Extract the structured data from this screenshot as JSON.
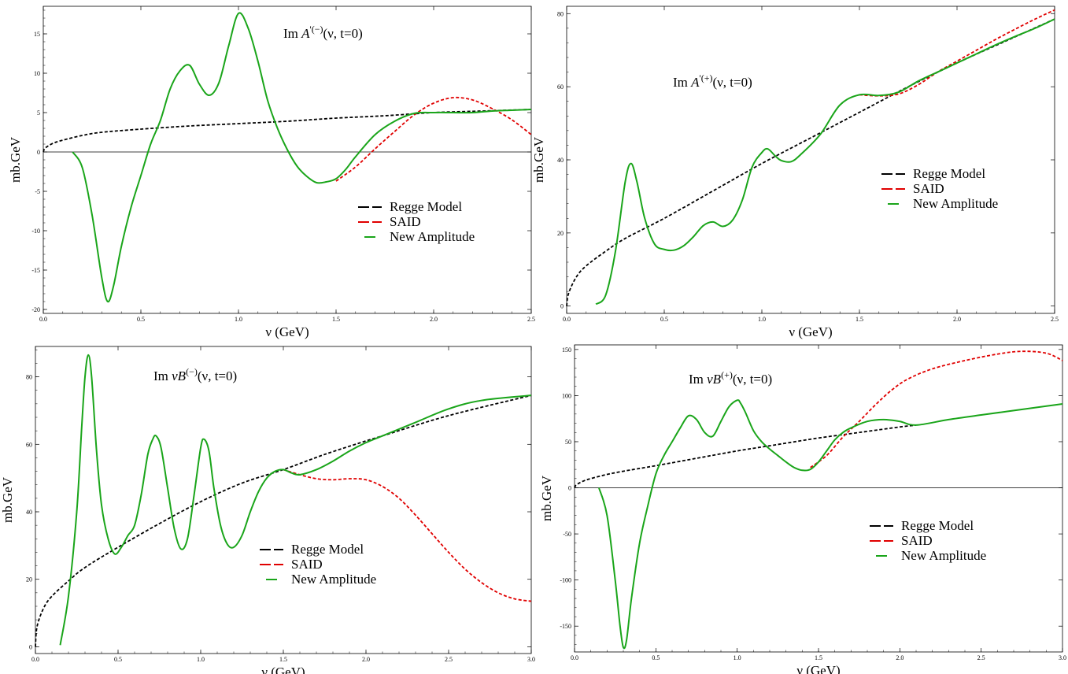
{
  "colors": {
    "regge": "#000000",
    "said": "#e00000",
    "new": "#1aa51a",
    "frame": "#000000",
    "zero": "#000000"
  },
  "legend": {
    "regge": "Regge Model",
    "said": "SAID",
    "new": "New Amplitude"
  },
  "chart_data": [
    {
      "type": "line",
      "annotation": {
        "base": "Im",
        "symbol": "A",
        "sup": "'(−)",
        "args": "(ν, t=0)"
      },
      "xlabel": "ν (GeV)",
      "ylabel": "mb.GeV",
      "xlim": [
        0,
        2.5
      ],
      "ylim": [
        -20.5,
        18.5
      ],
      "xticks": [
        0.0,
        0.5,
        1.0,
        1.5,
        2.0,
        2.5
      ],
      "xticklabels": [
        "0.0",
        "0.5",
        "1.0",
        "1.5",
        "2.0",
        "2.5"
      ],
      "yticks": [
        -20,
        -15,
        -10,
        -5,
        0,
        5,
        10,
        15
      ],
      "yticklabels": [
        "-20",
        "-15",
        "-10",
        "-5",
        "0",
        "5",
        "10",
        "15"
      ],
      "zero_line": true,
      "legend_position": "bottom-right",
      "series": [
        {
          "name": "Regge Model",
          "style": "dashed",
          "color_key": "regge",
          "x": [
            0,
            0.01,
            0.05,
            0.1,
            0.2,
            0.3,
            0.5,
            0.75,
            1.0,
            1.25,
            1.5,
            1.75,
            2.0,
            2.25,
            2.5
          ],
          "y": [
            0,
            0.5,
            1.1,
            1.5,
            2.1,
            2.5,
            2.9,
            3.3,
            3.6,
            3.9,
            4.3,
            4.6,
            5.0,
            5.2,
            5.4
          ]
        },
        {
          "name": "SAID",
          "style": "dashed",
          "color_key": "said",
          "x": [
            1.5,
            1.6,
            1.7,
            1.8,
            1.9,
            2.0,
            2.1,
            2.2,
            2.3,
            2.4,
            2.5
          ],
          "y": [
            -3.7,
            -1.9,
            0.4,
            2.6,
            4.7,
            6.2,
            6.9,
            6.6,
            5.5,
            4.1,
            2.2
          ]
        },
        {
          "name": "New Amplitude",
          "style": "solid",
          "color_key": "new",
          "x": [
            0.15,
            0.2,
            0.25,
            0.3,
            0.33,
            0.36,
            0.4,
            0.45,
            0.5,
            0.55,
            0.6,
            0.65,
            0.7,
            0.75,
            0.8,
            0.85,
            0.9,
            0.95,
            1.0,
            1.05,
            1.1,
            1.15,
            1.2,
            1.25,
            1.3,
            1.35,
            1.4,
            1.45,
            1.5,
            1.55,
            1.6,
            1.7,
            1.8,
            1.9,
            2.0,
            2.1,
            2.2,
            2.3,
            2.4,
            2.5
          ],
          "y": [
            0,
            -2,
            -8,
            -16,
            -19,
            -17,
            -12,
            -7,
            -3,
            1,
            4,
            8,
            10.3,
            11,
            8.6,
            7.2,
            8.8,
            13.5,
            17.6,
            15.7,
            11.5,
            6.5,
            3.0,
            0.3,
            -1.8,
            -3.1,
            -3.9,
            -3.8,
            -3.4,
            -2.2,
            -0.6,
            2.2,
            3.9,
            4.9,
            5.0,
            5.0,
            5.0,
            5.2,
            5.3,
            5.4
          ]
        }
      ]
    },
    {
      "type": "line",
      "annotation": {
        "base": "Im",
        "symbol": "A",
        "sup": "'(+)",
        "args": "(ν, t=0)"
      },
      "xlabel": "ν (GeV)",
      "ylabel": "mb.GeV",
      "xlim": [
        0,
        2.5
      ],
      "ylim": [
        -2,
        82
      ],
      "xticks": [
        0.0,
        0.5,
        1.0,
        1.5,
        2.0,
        2.5
      ],
      "xticklabels": [
        "0.0",
        "0.5",
        "1.0",
        "1.5",
        "2.0",
        "2.5"
      ],
      "yticks": [
        0,
        20,
        40,
        60,
        80
      ],
      "yticklabels": [
        "0",
        "20",
        "40",
        "60",
        "80"
      ],
      "zero_line": false,
      "legend_position": "center-right",
      "series": [
        {
          "name": "Regge Model",
          "style": "dashed",
          "color_key": "regge",
          "x": [
            0,
            0.01,
            0.05,
            0.1,
            0.2,
            0.3,
            0.5,
            0.75,
            1.0,
            1.25,
            1.5,
            1.75,
            2.0,
            2.25,
            2.5
          ],
          "y": [
            0,
            3.5,
            8,
            11,
            15,
            18.5,
            24,
            31.5,
            39,
            46,
            53,
            60,
            66.5,
            72.5,
            78.5
          ]
        },
        {
          "name": "SAID",
          "style": "dashed",
          "color_key": "said",
          "x": [
            1.5,
            1.6,
            1.7,
            1.8,
            1.9,
            2.0,
            2.1,
            2.2,
            2.3,
            2.4,
            2.5
          ],
          "y": [
            57.8,
            57.5,
            58,
            60.5,
            64,
            67,
            70,
            73,
            75.8,
            78.5,
            81
          ]
        },
        {
          "name": "New Amplitude",
          "style": "solid",
          "color_key": "new",
          "x": [
            0.15,
            0.2,
            0.25,
            0.3,
            0.33,
            0.36,
            0.4,
            0.45,
            0.5,
            0.55,
            0.6,
            0.65,
            0.7,
            0.75,
            0.8,
            0.85,
            0.9,
            0.95,
            1.0,
            1.03,
            1.07,
            1.1,
            1.15,
            1.2,
            1.3,
            1.4,
            1.5,
            1.6,
            1.7,
            1.8,
            1.9,
            2.0,
            2.1,
            2.2,
            2.3,
            2.4,
            2.5
          ],
          "y": [
            0.5,
            3,
            15,
            34,
            39,
            34,
            24,
            17,
            15.5,
            15.3,
            16.5,
            19,
            22,
            23,
            21.8,
            23.5,
            29,
            38,
            42,
            43,
            41,
            39.8,
            39.5,
            41.5,
            47,
            55,
            57.8,
            57.6,
            58.5,
            61.5,
            64,
            66.5,
            69,
            71.5,
            73.8,
            76,
            78.5
          ]
        }
      ]
    },
    {
      "type": "line",
      "annotation": {
        "base": "Im",
        "symbol": "νB",
        "sup": "(−)",
        "args": "(ν, t=0)"
      },
      "xlabel": "ν (GeV)",
      "ylabel": "mb.GeV",
      "xlim": [
        0,
        3.0
      ],
      "ylim": [
        -2,
        89
      ],
      "xticks": [
        0.0,
        0.5,
        1.0,
        1.5,
        2.0,
        2.5,
        3.0
      ],
      "xticklabels": [
        "0.0",
        "0.5",
        "1.0",
        "1.5",
        "2.0",
        "2.5",
        "3.0"
      ],
      "yticks": [
        0,
        20,
        40,
        60,
        80
      ],
      "yticklabels": [
        "0",
        "20",
        "40",
        "60",
        "80"
      ],
      "zero_line": false,
      "legend_position": "bottom-right",
      "series": [
        {
          "name": "Regge Model",
          "style": "dashed",
          "color_key": "regge",
          "x": [
            0,
            0.01,
            0.05,
            0.1,
            0.2,
            0.3,
            0.5,
            0.75,
            1.0,
            1.25,
            1.5,
            1.75,
            2.0,
            2.1,
            2.5,
            3.0
          ],
          "y": [
            0,
            6,
            11.5,
            15,
            19.5,
            23.5,
            29.5,
            36.5,
            43,
            48.5,
            52.5,
            57,
            61,
            62.5,
            68.5,
            74.5
          ]
        },
        {
          "name": "SAID",
          "style": "dashed",
          "color_key": "said",
          "x": [
            1.5,
            1.6,
            1.7,
            1.8,
            1.9,
            2.0,
            2.1,
            2.2,
            2.3,
            2.4,
            2.5,
            2.6,
            2.7,
            2.8,
            2.9,
            3.0
          ],
          "y": [
            52.5,
            51,
            49.8,
            49.5,
            49.8,
            49.5,
            47.5,
            44,
            39,
            33.5,
            28,
            23,
            19,
            16,
            14.2,
            13.5
          ]
        },
        {
          "name": "New Amplitude",
          "style": "solid",
          "color_key": "new",
          "x": [
            0.15,
            0.2,
            0.25,
            0.28,
            0.3,
            0.32,
            0.34,
            0.37,
            0.4,
            0.44,
            0.48,
            0.52,
            0.56,
            0.6,
            0.64,
            0.68,
            0.71,
            0.73,
            0.76,
            0.8,
            0.84,
            0.88,
            0.92,
            0.96,
            1.0,
            1.02,
            1.05,
            1.08,
            1.12,
            1.16,
            1.2,
            1.25,
            1.3,
            1.35,
            1.4,
            1.45,
            1.5,
            1.55,
            1.6,
            1.7,
            1.8,
            1.9,
            2.0,
            2.1,
            2.3,
            2.5,
            2.7,
            3.0
          ],
          "y": [
            0.5,
            15,
            40,
            65,
            80,
            86.5,
            80,
            58,
            42,
            32,
            27.5,
            29.5,
            33,
            36,
            45,
            57,
            61.5,
            62.5,
            59,
            47,
            35,
            29,
            32,
            45,
            59,
            61.5,
            58,
            47,
            36,
            30.5,
            29.5,
            33,
            40,
            46,
            50,
            52,
            52.5,
            51.5,
            51,
            52.5,
            55,
            58,
            60.5,
            62.5,
            66.5,
            70.5,
            73,
            74.5
          ]
        }
      ]
    },
    {
      "type": "line",
      "annotation": {
        "base": "Im",
        "symbol": "νB",
        "sup": "(+)",
        "args": "(ν, t=0)"
      },
      "xlabel": "ν (GeV)",
      "ylabel": "mb.GeV",
      "xlim": [
        0,
        3.0
      ],
      "ylim": [
        -178,
        155
      ],
      "xticks": [
        0.0,
        0.5,
        1.0,
        1.5,
        2.0,
        2.5,
        3.0
      ],
      "xticklabels": [
        "0.0",
        "0.5",
        "1.0",
        "1.5",
        "2.0",
        "2.5",
        "3.0"
      ],
      "yticks": [
        -150,
        -100,
        -50,
        0,
        50,
        100,
        150
      ],
      "yticklabels": [
        "-150",
        "-100",
        "-50",
        "0",
        "50",
        "100",
        "150"
      ],
      "zero_line": true,
      "legend_position": "bottom-right",
      "series": [
        {
          "name": "Regge Model",
          "style": "dashed",
          "color_key": "regge",
          "x": [
            0,
            0.01,
            0.05,
            0.1,
            0.2,
            0.3,
            0.5,
            0.75,
            1.0,
            1.25,
            1.5,
            1.75,
            2.0,
            2.1
          ],
          "y": [
            0,
            3,
            7,
            10,
            14.5,
            18,
            24,
            32,
            40,
            47,
            54,
            60,
            66,
            68
          ]
        },
        {
          "name": "SAID",
          "style": "dashed",
          "color_key": "said",
          "x": [
            1.45,
            1.55,
            1.65,
            1.75,
            1.85,
            1.95,
            2.05,
            2.2,
            2.4,
            2.6,
            2.75,
            2.9,
            3.0
          ],
          "y": [
            22,
            35,
            55,
            72,
            90,
            106,
            118,
            129,
            138,
            145,
            148,
            146,
            138
          ]
        },
        {
          "name": "New Amplitude",
          "style": "solid",
          "color_key": "new",
          "x": [
            0.15,
            0.2,
            0.25,
            0.28,
            0.3,
            0.32,
            0.35,
            0.4,
            0.45,
            0.5,
            0.55,
            0.6,
            0.65,
            0.7,
            0.75,
            0.8,
            0.85,
            0.9,
            0.95,
            1.0,
            1.02,
            1.05,
            1.1,
            1.15,
            1.2,
            1.25,
            1.3,
            1.35,
            1.4,
            1.45,
            1.5,
            1.55,
            1.6,
            1.65,
            1.7,
            1.8,
            1.9,
            2.0,
            2.1,
            2.3,
            2.5,
            2.75,
            3.0
          ],
          "y": [
            0,
            -30,
            -100,
            -150,
            -173,
            -165,
            -120,
            -60,
            -20,
            15,
            35,
            50,
            65,
            78,
            74,
            60,
            56,
            72,
            88,
            95,
            92,
            82,
            62,
            50,
            42,
            35,
            28,
            22,
            19,
            20,
            28,
            40,
            52,
            60,
            65,
            72,
            74,
            72,
            68,
            74,
            79,
            85,
            91
          ]
        }
      ]
    }
  ]
}
